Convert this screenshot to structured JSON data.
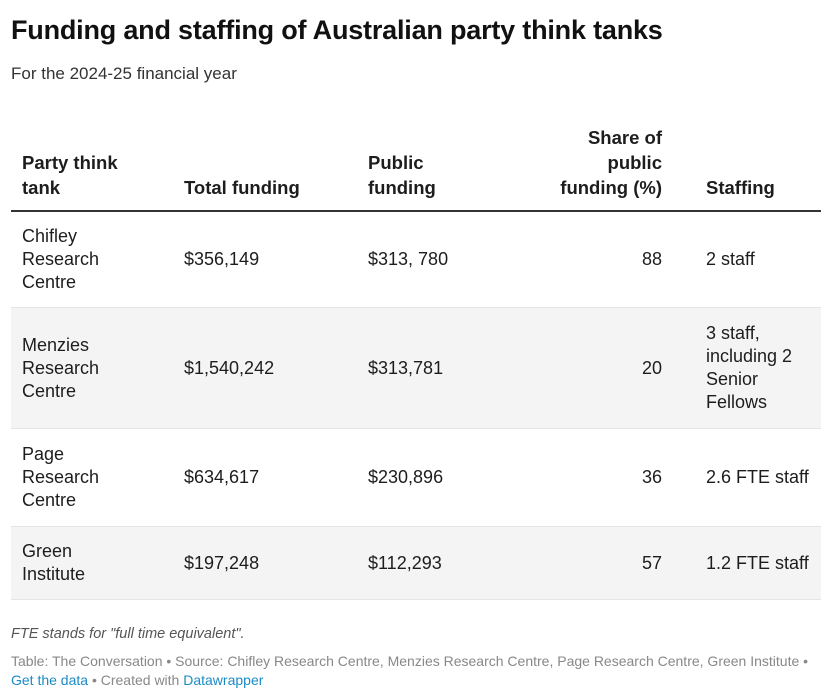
{
  "title": "Funding and staffing of Australian party think tanks",
  "subtitle": "For the 2024-25 financial year",
  "chart_data": {
    "type": "table",
    "columns": [
      {
        "line1": "Party think",
        "line2": "tank",
        "line3": ""
      },
      {
        "line1": "Total funding",
        "line2": "",
        "line3": ""
      },
      {
        "line1": "Public",
        "line2": "funding",
        "line3": ""
      },
      {
        "line1": "Share of",
        "line2": "public",
        "line3": "funding (%)"
      },
      {
        "line1": "Staffing",
        "line2": "",
        "line3": ""
      }
    ],
    "rows": [
      {
        "name": [
          "Chifley",
          "Research",
          "Centre"
        ],
        "total": "$356,149",
        "public": "$313, 780",
        "share": 88,
        "staffing": [
          "2 staff"
        ]
      },
      {
        "name": [
          "Menzies",
          "Research",
          "Centre"
        ],
        "total": "$1,540,242",
        "public": "$313,781",
        "share": 20,
        "staffing": [
          "3 staff,",
          "including 2",
          "Senior",
          "Fellows"
        ]
      },
      {
        "name": [
          "Page",
          "Research",
          "Centre"
        ],
        "total": "$634,617",
        "public": "$230,896",
        "share": 36,
        "staffing": [
          "2.6 FTE staff"
        ]
      },
      {
        "name": [
          "Green",
          "Institute"
        ],
        "total": "$197,248",
        "public": "$112,293",
        "share": 57,
        "staffing": [
          "1.2 FTE staff"
        ]
      }
    ]
  },
  "footer": {
    "note": "FTE stands for \"full time equivalent\".",
    "source_prefix": "Table: The Conversation • Source: Chifley Research Centre, Menzies Research Centre, Page Research Centre, Green Institute •",
    "get_data": "Get the data",
    "separator": "• Created with",
    "datawrapper": "Datawrapper"
  }
}
